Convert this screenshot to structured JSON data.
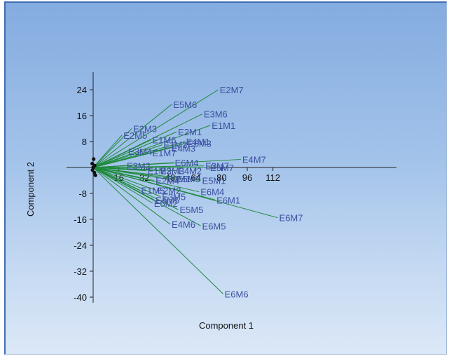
{
  "chart_data": {
    "type": "scatter",
    "subtype": "biplot",
    "xlabel": "Component 1",
    "ylabel": "Component 2",
    "xlim": [
      -8,
      122
    ],
    "ylim": [
      -42,
      30
    ],
    "xticks": [
      16,
      32,
      48,
      64,
      80,
      96,
      112
    ],
    "yticks": [
      24,
      16,
      8,
      -8,
      -16,
      -24,
      -32,
      -40
    ],
    "grid": false,
    "line_color": "#1f8a3c",
    "label_color": "#3b4fa0",
    "loadings": [
      {
        "label": "E2M7",
        "x": 78,
        "y": 24
      },
      {
        "label": "E5M6",
        "x": 49,
        "y": 19.5
      },
      {
        "label": "E3M6",
        "x": 68,
        "y": 16.5
      },
      {
        "label": "E2M1",
        "x": 52,
        "y": 11
      },
      {
        "label": "E1M1",
        "x": 73,
        "y": 13
      },
      {
        "label": "E2M3",
        "x": 24,
        "y": 12
      },
      {
        "label": "E2M5",
        "x": 18,
        "y": 10
      },
      {
        "label": "E1M6",
        "x": 36,
        "y": 8.5
      },
      {
        "label": "E4M1",
        "x": 57,
        "y": 8
      },
      {
        "label": "E6M3",
        "x": 58,
        "y": 7.5
      },
      {
        "label": "E1M3",
        "x": 43,
        "y": 7
      },
      {
        "label": "E4M3",
        "x": 48,
        "y": 6
      },
      {
        "label": "E3M4",
        "x": 21,
        "y": 5
      },
      {
        "label": "E1M7",
        "x": 36,
        "y": 4.5
      },
      {
        "label": "E4M7",
        "x": 92,
        "y": 2.5
      },
      {
        "label": "E6M4",
        "x": 50,
        "y": 1.5
      },
      {
        "label": "E3M7",
        "x": 69,
        "y": 0.5
      },
      {
        "label": "E5M7",
        "x": 72,
        "y": 0
      },
      {
        "label": "E3M2",
        "x": 20,
        "y": 0.5
      },
      {
        "label": "E1M2",
        "x": 33,
        "y": -1
      },
      {
        "label": "E3M3",
        "x": 41,
        "y": -1
      },
      {
        "label": "E4M2",
        "x": 52,
        "y": -1
      },
      {
        "label": "E5M1",
        "x": 67,
        "y": -4
      },
      {
        "label": "E2M4",
        "x": 38,
        "y": -4
      },
      {
        "label": "E3M1",
        "x": 45,
        "y": -3.5
      },
      {
        "label": "E5M3",
        "x": 51,
        "y": -3.5
      },
      {
        "label": "E6M4",
        "x": 66,
        "y": -7.5
      },
      {
        "label": "E6M1",
        "x": 76,
        "y": -10
      },
      {
        "label": "E1M5",
        "x": 29,
        "y": -7
      },
      {
        "label": "E2M2",
        "x": 39,
        "y": -7
      },
      {
        "label": "E3M5",
        "x": 42,
        "y": -9
      },
      {
        "label": "E4M5",
        "x": 38,
        "y": -10
      },
      {
        "label": "E5M2",
        "x": 37,
        "y": -11
      },
      {
        "label": "E5M5",
        "x": 53,
        "y": -13
      },
      {
        "label": "E4M6",
        "x": 48,
        "y": -17.5
      },
      {
        "label": "E6M5",
        "x": 67,
        "y": -18
      },
      {
        "label": "E6M7",
        "x": 115,
        "y": -15.5
      },
      {
        "label": "E6M6",
        "x": 81,
        "y": -39
      }
    ]
  }
}
